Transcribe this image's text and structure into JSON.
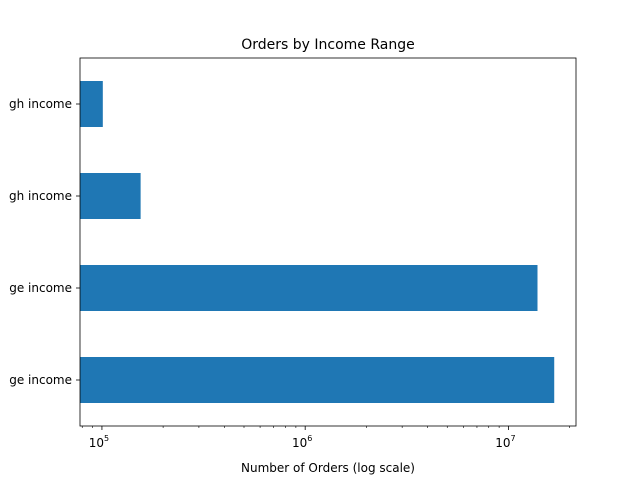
{
  "chart_data": {
    "type": "bar",
    "orientation": "horizontal",
    "title": "Orders by Income Range",
    "xlabel": "Number of Orders (log scale)",
    "ylabel": "",
    "x_scale": "log",
    "xlim": [
      78000,
      21500000
    ],
    "categories": [
      "Below average income",
      "Average income",
      "High income",
      "Very high income"
    ],
    "category_labels_visible": [
      "ge income",
      "ge income",
      "gh income",
      "gh income"
    ],
    "values": [
      16800000,
      13900000,
      155000,
      101000
    ],
    "x_ticks": [
      {
        "value": 100000,
        "base": "10",
        "exp": "5"
      },
      {
        "value": 1000000,
        "base": "10",
        "exp": "6"
      },
      {
        "value": 10000000,
        "base": "10",
        "exp": "7"
      }
    ],
    "bar_color": "#1f77b4",
    "grid": false,
    "legend": "none"
  }
}
